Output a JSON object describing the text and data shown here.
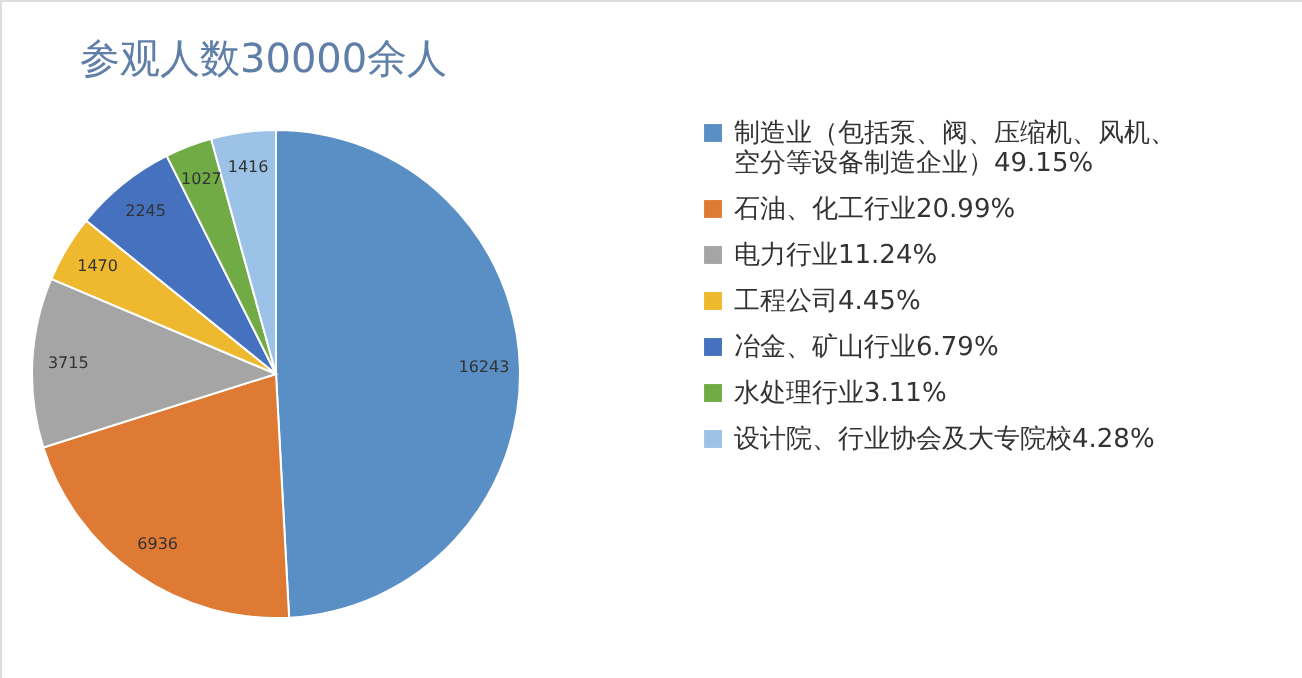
{
  "chart_data": {
    "type": "pie",
    "title": "参观人数30000余人",
    "categories": [
      "制造业（包括泵、阀、压缩机、风机、空分等设备制造企业）49.15%",
      "石油、化工行业20.99%",
      "电力行业11.24%",
      "工程公司4.45%",
      "冶金、矿山行业6.79%",
      "水处理行业3.11%",
      "设计院、行业协会及大专院校4.28%"
    ],
    "values": [
      16243,
      6936,
      3715,
      1470,
      2245,
      1027,
      1416
    ],
    "colors": [
      "#5a8fc6",
      "#df7a35",
      "#a5a5a5",
      "#efb92f",
      "#4671bf",
      "#70ab46",
      "#9dc2e7"
    ],
    "data_labels": true,
    "legend": "right"
  }
}
